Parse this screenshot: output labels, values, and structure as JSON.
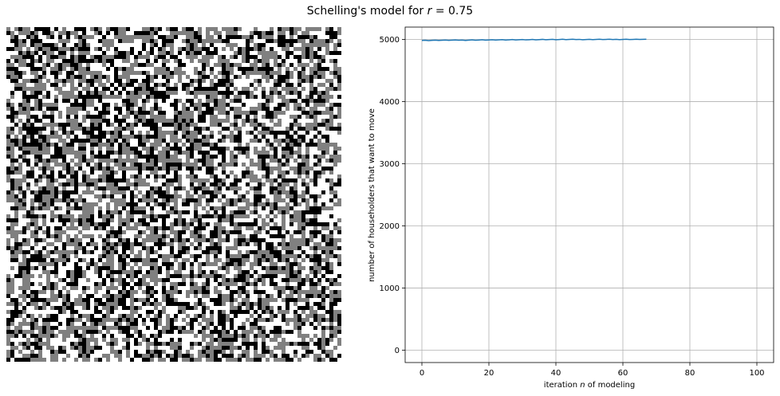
{
  "figure": {
    "title_prefix": "Schelling's model for ",
    "title_var": "r",
    "title_suffix": " = 0.75"
  },
  "grid_panel": {
    "colors": {
      "empty": "#ffffff",
      "group_a": "#808080",
      "group_b": "#000000"
    }
  },
  "chart_data": {
    "type": "line",
    "x": [
      0,
      1,
      2,
      3,
      4,
      5,
      6,
      7,
      8,
      9,
      10,
      11,
      12,
      13,
      14,
      15,
      16,
      17,
      18,
      19,
      20,
      21,
      22,
      23,
      24,
      25,
      26,
      27,
      28,
      29,
      30,
      31,
      32,
      33,
      34,
      35,
      36,
      37,
      38,
      39,
      40,
      41,
      42,
      43,
      44,
      45,
      46,
      47,
      48,
      49,
      50,
      51,
      52,
      53,
      54,
      55,
      56,
      57,
      58,
      59,
      60,
      61,
      62,
      63,
      64,
      65,
      66,
      67
    ],
    "series": [
      {
        "color": "#1f77b4",
        "values": [
          4985,
          4988,
          4982,
          4987,
          4990,
          4985,
          4989,
          4992,
          4987,
          4990,
          4993,
          4988,
          4991,
          4985,
          4990,
          4994,
          4989,
          4992,
          4996,
          4990,
          4993,
          4997,
          4991,
          4994,
          4998,
          4992,
          4995,
          4999,
          4993,
          4996,
          5000,
          4994,
          4997,
          5001,
          4995,
          4998,
          5002,
          4996,
          4999,
          5003,
          4997,
          5000,
          5004,
          4998,
          5001,
          5005,
          4999,
          5002,
          4996,
          5000,
          5003,
          4998,
          5001,
          5004,
          4999,
          5002,
          5005,
          5000,
          5003,
          4998,
          5001,
          5004,
          4999,
          5002,
          5005,
          5001,
          5003,
          5004
        ]
      }
    ],
    "xlabel_prefix": "iteration ",
    "xlabel_var": "n",
    "xlabel_suffix": " of modeling",
    "ylabel": "number of householders that want to move",
    "xlim": [
      -5,
      105
    ],
    "ylim": [
      -200,
      5200
    ],
    "xticks": [
      0,
      20,
      40,
      60,
      80,
      100
    ],
    "yticks": [
      0,
      1000,
      2000,
      3000,
      4000,
      5000
    ],
    "xtick_labels": [
      "0",
      "20",
      "40",
      "60",
      "80",
      "100"
    ],
    "ytick_labels": [
      "0",
      "1000",
      "2000",
      "3000",
      "4000",
      "5000"
    ],
    "grid": true
  }
}
